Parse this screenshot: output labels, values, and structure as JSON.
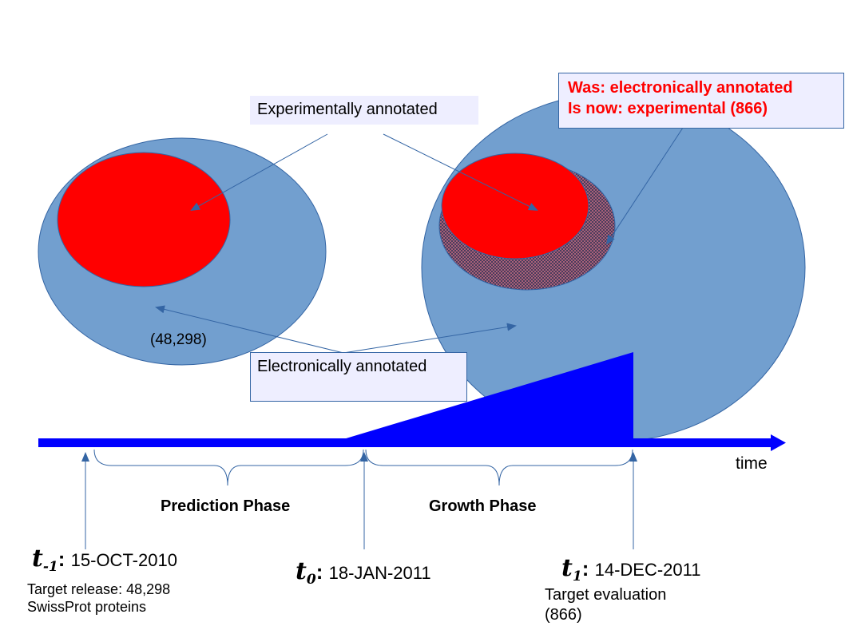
{
  "labels": {
    "experimentally_annotated": "Experimentally annotated",
    "electronically_annotated": "Electronically annotated",
    "count_left": "(48,298)",
    "was_line1": "Was: electronically annotated",
    "was_line2": "Is now: experimental (866)",
    "time": "time",
    "prediction_phase": "Prediction Phase",
    "growth_phase": "Growth Phase"
  },
  "timepoints": [
    {
      "symbol": "t",
      "subscript": "-1",
      "date": "15-OCT-2010",
      "note_line1": "Target release: 48,298",
      "note_line2": "SwissProt proteins"
    },
    {
      "symbol": "t",
      "subscript": "0",
      "date": "18-JAN-2011"
    },
    {
      "symbol": "t",
      "subscript": "1",
      "date": "14-DEC-2011",
      "note_line1": "Target evaluation",
      "note_line2": "(866)"
    }
  ],
  "colors": {
    "outer_ellipse": "#729fcf",
    "outer_stroke": "#3465a4",
    "inner_red": "#ff0000",
    "timeline_blue": "#0000ff",
    "label_box": "#eeeeff",
    "alert_text": "#ff0000",
    "connector": "#3465a4"
  }
}
